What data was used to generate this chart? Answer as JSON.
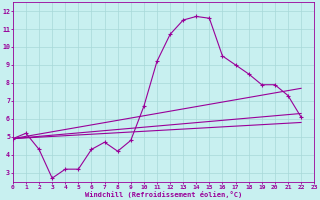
{
  "xlabel": "Windchill (Refroidissement éolien,°C)",
  "background_color": "#c8f0f0",
  "line_color": "#990099",
  "grid_color": "#a8d8d8",
  "xlim": [
    0,
    23
  ],
  "ylim": [
    2.5,
    12.5
  ],
  "xticks": [
    0,
    1,
    2,
    3,
    4,
    5,
    6,
    7,
    8,
    9,
    10,
    11,
    12,
    13,
    14,
    15,
    16,
    17,
    18,
    19,
    20,
    21,
    22,
    23
  ],
  "yticks": [
    3,
    4,
    5,
    6,
    7,
    8,
    9,
    10,
    11,
    12
  ],
  "main_series": {
    "x": [
      0,
      1,
      2,
      3,
      4,
      5,
      6,
      7,
      8,
      9,
      10,
      11,
      12,
      13,
      14,
      15,
      16,
      17,
      18,
      19,
      20,
      21,
      22
    ],
    "y": [
      4.9,
      5.2,
      4.3,
      2.7,
      3.2,
      3.2,
      4.3,
      4.7,
      4.2,
      4.8,
      6.7,
      9.2,
      10.7,
      11.5,
      11.7,
      11.6,
      9.5,
      9.0,
      8.5,
      7.9,
      7.9,
      7.3,
      6.1
    ]
  },
  "straight_lines": [
    {
      "x": [
        0,
        22
      ],
      "y": [
        4.9,
        7.7
      ]
    },
    {
      "x": [
        0,
        22
      ],
      "y": [
        4.9,
        6.3
      ]
    },
    {
      "x": [
        0,
        22
      ],
      "y": [
        4.9,
        5.8
      ]
    }
  ]
}
